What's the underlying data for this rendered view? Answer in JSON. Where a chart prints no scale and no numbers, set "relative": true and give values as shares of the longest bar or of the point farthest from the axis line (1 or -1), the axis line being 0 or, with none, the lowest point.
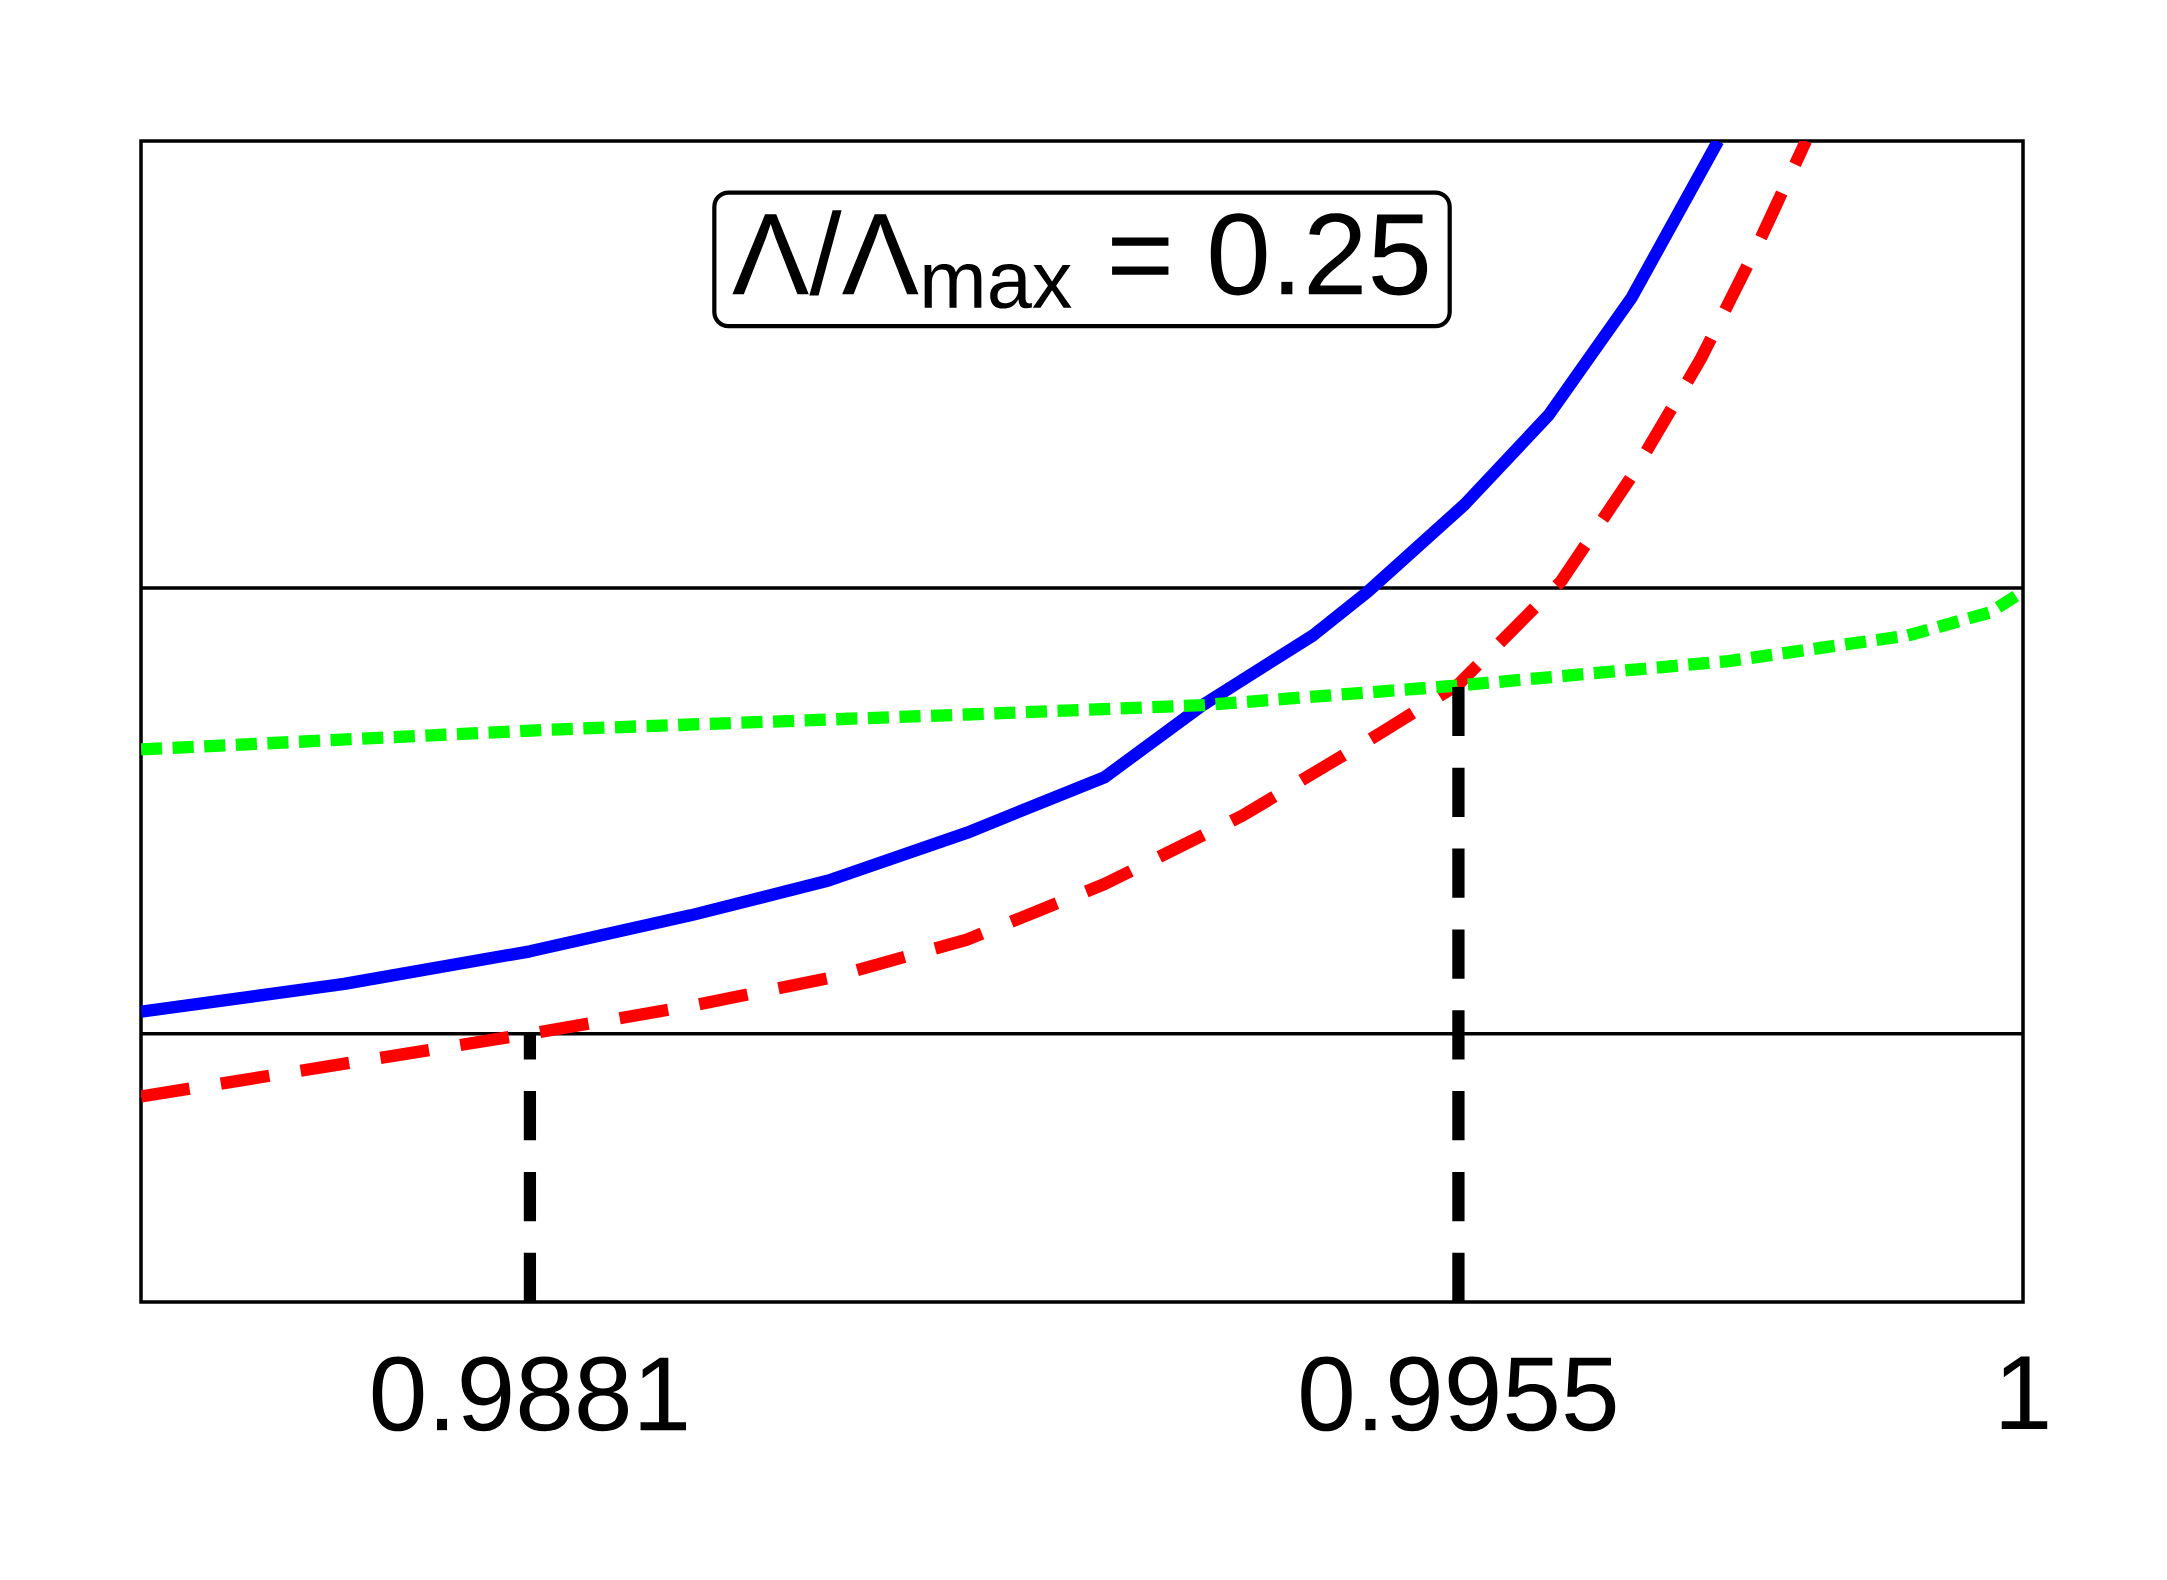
{
  "chart_data": {
    "type": "line",
    "relative": true,
    "xlim": [
      0.985,
      1
    ],
    "xticks": [
      0.9881,
      0.9955,
      1
    ],
    "tick_labels": "x",
    "annotations": [
      "Λ/Λ$_{max}$ = 0.25"
    ],
    "ref_lines": [
      {
        "axis": "y",
        "value": 0.615,
        "color": "#000000"
      },
      {
        "axis": "y",
        "value": 0.231,
        "color": "#000000"
      }
    ],
    "series": [
      {
        "color": "#0000ff",
        "line_style": "solid",
        "x": [
          0.985,
          0.98662,
          0.9881,
          0.98938,
          0.99048,
          0.99158,
          0.99268,
          0.99346,
          0.99434,
          0.99478,
          0.99555,
          0.99622,
          0.99688,
          0.99757
        ],
        "values": [
          0.25,
          0.274,
          0.302,
          0.333,
          0.363,
          0.404,
          0.452,
          0.514,
          0.574,
          0.612,
          0.687,
          0.764,
          0.865,
          1.0
        ]
      },
      {
        "color": "#ff0000",
        "line_style": "dashed",
        "x": [
          0.985,
          0.9881,
          0.98938,
          0.99048,
          0.99158,
          0.99268,
          0.99378,
          0.99488,
          0.9955,
          0.99632,
          0.99688,
          0.99743,
          0.99787,
          0.99827
        ],
        "values": [
          0.177,
          0.231,
          0.255,
          0.279,
          0.312,
          0.36,
          0.419,
          0.49,
          0.532,
          0.621,
          0.711,
          0.812,
          0.907,
          1.0
        ]
      },
      {
        "color": "#00ff00",
        "line_style": "dotted",
        "x": [
          0.985,
          0.98827,
          0.99158,
          0.99346,
          0.9955,
          0.99765,
          0.99908,
          0.99974,
          1.0
        ],
        "values": [
          0.476,
          0.493,
          0.506,
          0.514,
          0.531,
          0.552,
          0.574,
          0.594,
          0.612
        ]
      },
      {
        "color": "#000000",
        "line_style": "dashed",
        "x": [
          0.9881,
          0.9881
        ],
        "values": [
          0,
          0.231
        ]
      },
      {
        "color": "#000000",
        "line_style": "dashed",
        "x": [
          0.9955,
          0.9955
        ],
        "values": [
          0,
          0.532
        ]
      }
    ]
  }
}
